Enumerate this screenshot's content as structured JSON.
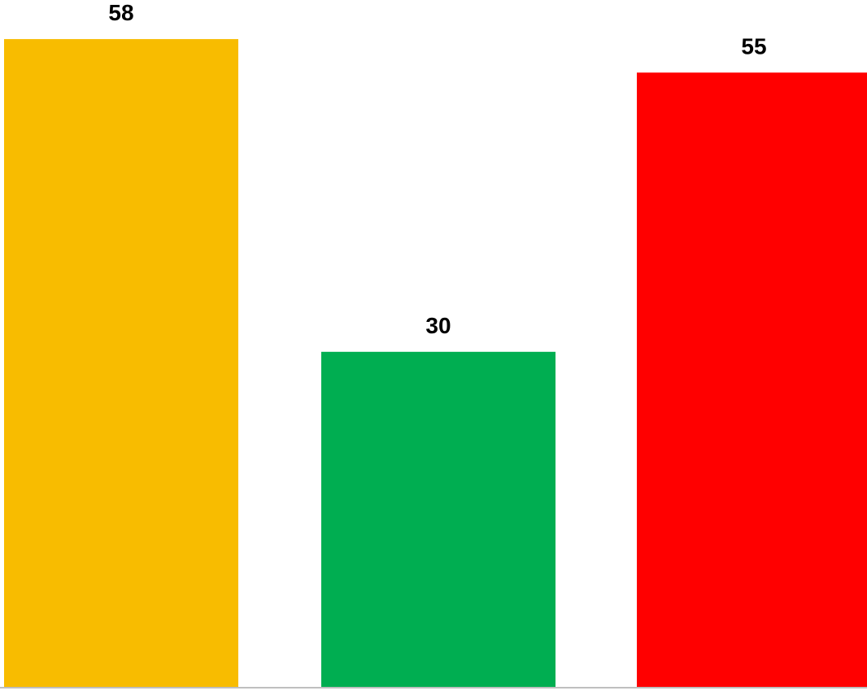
{
  "chart_data": {
    "type": "bar",
    "categories": [
      "",
      "",
      ""
    ],
    "values": [
      58,
      30,
      55
    ],
    "bar_colors": [
      "#F8BC00",
      "#00AE51",
      "#FF0000"
    ],
    "data_labels": [
      "58",
      "30",
      "55"
    ],
    "title": "",
    "xlabel": "",
    "ylabel": "",
    "ylim": [
      0,
      61.5
    ],
    "grid": false,
    "legend": "none",
    "axis_color": "#BFBFBF"
  }
}
